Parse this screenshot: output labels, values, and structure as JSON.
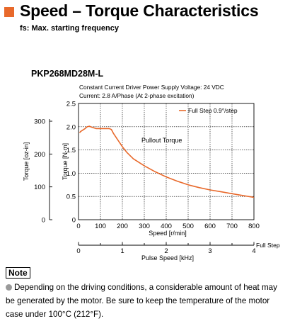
{
  "header": {
    "title": "Speed – Torque Characteristics",
    "subtitle": "fs: Max. starting frequency",
    "accent_color": "#e8692b"
  },
  "model": "PKP268MD28M-L",
  "conditions": {
    "line1": "Constant Current Driver   Power Supply Voltage: 24 VDC",
    "line2": "Current: 2.8 A/Phase (At 2-phase excitation)"
  },
  "chart_data": {
    "type": "line",
    "xlabel": "Speed [r/min]",
    "xlim": [
      0,
      800
    ],
    "x_ticks": [
      0,
      100,
      200,
      300,
      400,
      500,
      600,
      700,
      800
    ],
    "ylabel": "Torque [N·m]",
    "ylim": [
      0,
      2.5
    ],
    "y_ticks": [
      "0",
      "0.5",
      "1.0",
      "1.5",
      "2.0",
      "2.5"
    ],
    "y2label": "Torque [oz-in]",
    "y2_ticks": [
      0,
      100,
      200,
      300
    ],
    "pulse_axis": {
      "label": "Pulse Speed [kHz]",
      "ticks": [
        0,
        1,
        2,
        3,
        4
      ],
      "end_label": "Full Step",
      "khz_per_rpm": 0.005
    },
    "grid": true,
    "legend": {
      "position": "top-right",
      "label": "Full Step 0.9°/step"
    },
    "annotation": "Pullout Torque",
    "series": [
      {
        "name": "Full Step 0.9°/step",
        "color": "#e8692b",
        "x": [
          5,
          10,
          20,
          30,
          40,
          50,
          60,
          80,
          100,
          120,
          140,
          150,
          160,
          180,
          200,
          220,
          250,
          300,
          350,
          400,
          450,
          500,
          550,
          600,
          650,
          700,
          750,
          800
        ],
        "y": [
          1.87,
          1.9,
          1.93,
          1.96,
          2.0,
          2.01,
          1.99,
          1.96,
          1.96,
          1.96,
          1.96,
          1.94,
          1.85,
          1.71,
          1.57,
          1.45,
          1.31,
          1.16,
          1.03,
          0.92,
          0.83,
          0.75,
          0.69,
          0.64,
          0.6,
          0.56,
          0.52,
          0.48
        ]
      }
    ]
  },
  "note": {
    "label": "Note",
    "text": "Depending on the driving conditions, a considerable amount of heat may be generated by the motor. Be sure to keep the temperature of the motor case under 100°C (212°F)."
  }
}
